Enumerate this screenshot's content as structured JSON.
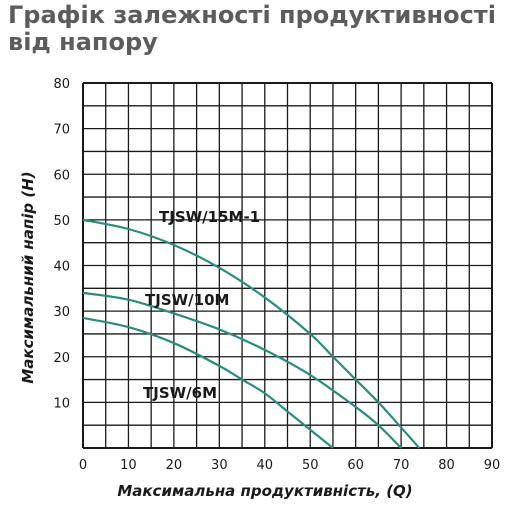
{
  "chart_data": {
    "type": "line",
    "title": "Графік залежності продуктивності від напору",
    "xlabel": "Максимальна продуктивність, (Q)",
    "ylabel": "Максимальний напір (H)",
    "xlim": [
      0,
      90
    ],
    "ylim": [
      0,
      80
    ],
    "x_ticks": [
      0,
      10,
      20,
      30,
      40,
      50,
      60,
      70,
      80,
      90
    ],
    "y_ticks": [
      10,
      20,
      30,
      40,
      50,
      60,
      70,
      80
    ],
    "grid": true,
    "line_color": "#2a8c80",
    "series": [
      {
        "name": "TJSW/15M-1",
        "x": [
          0,
          10,
          20,
          30,
          40,
          50,
          55,
          60,
          65,
          70,
          74
        ],
        "y": [
          50,
          48,
          44.5,
          39.5,
          33,
          25,
          20,
          15,
          10,
          4.5,
          0
        ]
      },
      {
        "name": "TJSW/10M",
        "x": [
          0,
          10,
          20,
          30,
          40,
          50,
          60,
          65,
          70
        ],
        "y": [
          34,
          32.5,
          29.5,
          26,
          21.5,
          16,
          9,
          5,
          0
        ]
      },
      {
        "name": "TJSW/6M",
        "x": [
          0,
          10,
          20,
          30,
          35,
          40,
          45,
          50,
          55
        ],
        "y": [
          28.5,
          26.5,
          23,
          18,
          15,
          12,
          8,
          4,
          0
        ]
      }
    ]
  }
}
